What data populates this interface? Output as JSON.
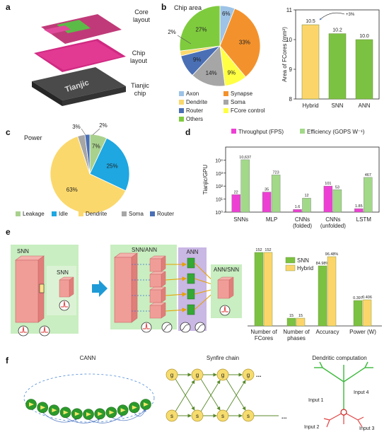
{
  "panels": {
    "a": {
      "label": "a",
      "layer_labels": [
        "Core\nlayout",
        "Chip\nlayout",
        "Tianjic\nchip"
      ],
      "chip_text": "Tianjic"
    },
    "b": {
      "label": "b",
      "pie_title": "Chip area"
    },
    "c": {
      "label": "c",
      "title": "Power"
    },
    "d": {
      "label": "d"
    },
    "e": {
      "label": "e",
      "box_labels": [
        "SNN",
        "SNN",
        "SNN/ANN",
        "ANN",
        "ANN/SNN"
      ]
    },
    "f": {
      "label": "f",
      "titles": [
        "CANN",
        "Synfire chain",
        "Dendritic computation"
      ],
      "synfire_top": [
        "g",
        "g",
        "g",
        "g"
      ],
      "synfire_bottom": [
        "s",
        "s",
        "s",
        "s"
      ],
      "ellipsis": "...",
      "dendrite_inputs": [
        "Input 4",
        "Input 1",
        "Input 2",
        "Input 3"
      ]
    }
  },
  "colors": {
    "axon": "#9dc3e6",
    "synapse": "#f3922c",
    "dendrite": "#fbd86c",
    "soma": "#a6a6a6",
    "router": "#4a6fb5",
    "fcore_control": "#ffff44",
    "others": "#7fcb3e",
    "leakage": "#a9d18e",
    "idle": "#1ea7e1",
    "yellow_bar": "#fcd56a",
    "green_bar": "#7cc242",
    "magenta": "#ee3fd4",
    "light_green": "#a2d989"
  },
  "chart_data": [
    {
      "id": "b-pie",
      "type": "pie",
      "title": "Chip area",
      "slices": [
        {
          "label": "Axon",
          "value": 6,
          "text": "6%"
        },
        {
          "label": "Synapse",
          "value": 33,
          "text": "33%"
        },
        {
          "label": "FCore control",
          "value": 9,
          "text": "9%"
        },
        {
          "label": "Soma",
          "value": 14,
          "text": "14%"
        },
        {
          "label": "Router",
          "value": 9,
          "text": "9%"
        },
        {
          "label": "Dendrite",
          "value": 2,
          "text": "2%"
        },
        {
          "label": "Others",
          "value": 27,
          "text": "27%"
        }
      ],
      "legend": [
        "Axon",
        "Synapse",
        "Dendrite",
        "Soma",
        "Router",
        "FCore control",
        "Others"
      ]
    },
    {
      "id": "b-bar",
      "type": "bar",
      "categories": [
        "Hybrid",
        "SNN",
        "ANN"
      ],
      "values": [
        10.5,
        10.2,
        10.0
      ],
      "value_labels": [
        "10.5",
        "10.2",
        "10.0"
      ],
      "annotation": "+3%",
      "ylabel": "Area of FCores (mm²)",
      "ylim": [
        8,
        11
      ],
      "yticks": [
        "8",
        "9",
        "10",
        "11"
      ]
    },
    {
      "id": "c-pie",
      "type": "pie",
      "title": "Power",
      "slices": [
        {
          "label": "Leakage",
          "value": 7,
          "text": "7%"
        },
        {
          "label": "Idle",
          "value": 25,
          "text": "25%"
        },
        {
          "label": "Dendrite",
          "value": 63,
          "text": "63%"
        },
        {
          "label": "Soma",
          "value": 3,
          "text": "3%"
        },
        {
          "label": "Router",
          "value": 2,
          "text": "2%"
        }
      ],
      "legend": [
        "Leakage",
        "Idle",
        "Dendrite",
        "Soma",
        "Router"
      ]
    },
    {
      "id": "d-bar",
      "type": "bar",
      "log_scale": true,
      "ylabel": "Tianjic/GPU",
      "ylim": [
        1,
        100000
      ],
      "yticks": [
        "10⁰",
        "10¹",
        "10²",
        "10³",
        "10⁴"
      ],
      "categories": [
        "SNNs",
        "MLP",
        "CNNs\n(folded)",
        "CNNs\n(unfolded)",
        "LSTM"
      ],
      "series": [
        {
          "name": "Throughput (FPS)",
          "values": [
            22,
            35,
            1.6,
            101,
            1.85
          ],
          "labels": [
            "22",
            "35",
            "1.6",
            "101",
            "1.85"
          ]
        },
        {
          "name": "Efficiency (GOPS W⁻¹)",
          "values": [
            10637,
            723,
            12,
            53,
            467
          ],
          "labels": [
            "10,637",
            "723",
            "12",
            "53",
            "467"
          ]
        }
      ]
    },
    {
      "id": "e-bar",
      "type": "bar",
      "categories": [
        "Number of\nFCores",
        "Number of\nphases",
        "Accuracy",
        "Power (W)"
      ],
      "series": [
        {
          "name": "SNN",
          "labels": [
            "152",
            "15",
            "84.98%",
            "0.397"
          ]
        },
        {
          "name": "Hybrid",
          "labels": [
            "152",
            "15",
            "96.48%",
            "0.406"
          ]
        }
      ]
    }
  ]
}
